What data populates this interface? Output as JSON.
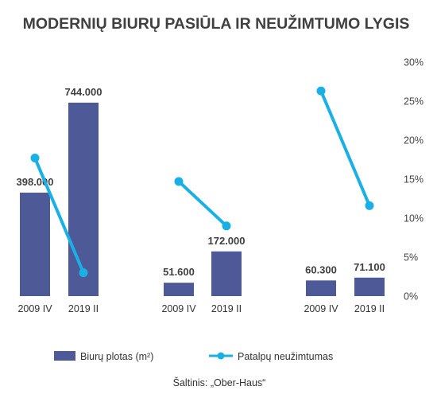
{
  "chart_data": {
    "type": "bar",
    "title": "MODERNIŲ BIURŲ PASIŪLA IR NEUŽIMTUMO LYGIS",
    "groups": [
      {
        "categories": [
          "2009 IV",
          "2019 II"
        ]
      },
      {
        "categories": [
          "2009 IV",
          "2019 II"
        ]
      },
      {
        "categories": [
          "2009 IV",
          "2019 II"
        ]
      }
    ],
    "series": [
      {
        "name": "Biurų plotas (m²)",
        "kind": "bar",
        "axis": "left",
        "values": [
          398000,
          744000,
          51600,
          172000,
          60300,
          71100
        ],
        "labels": [
          "398.000",
          "744.000",
          "51.600",
          "172.000",
          "60.300",
          "71.100"
        ],
        "color": "#4e5a97"
      },
      {
        "name": "Patalpų neužimtumas",
        "kind": "line",
        "axis": "right",
        "values": [
          17.7,
          3.0,
          14.7,
          9.0,
          26.3,
          11.6
        ],
        "color": "#1ab0e6",
        "segments": [
          [
            0,
            1
          ],
          [
            2,
            3
          ],
          [
            4,
            5
          ]
        ]
      }
    ],
    "y_left_range": [
      0,
      900000
    ],
    "y_right_range": [
      0,
      30
    ],
    "y_right_ticks": [
      "0%",
      "5%",
      "10%",
      "15%",
      "20%",
      "25%",
      "30%"
    ],
    "grid": false,
    "legend_position": "bottom",
    "source": "Šaltinis: „Ober-Haus“"
  }
}
